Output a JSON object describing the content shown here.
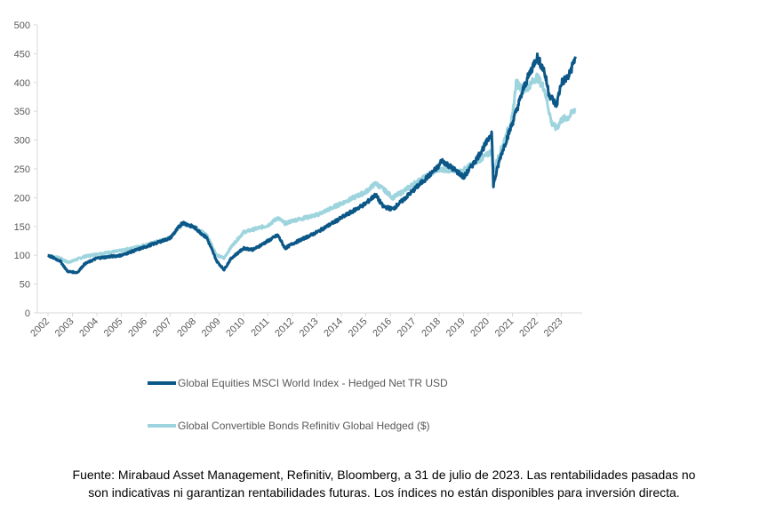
{
  "chart_data": {
    "type": "line",
    "title": "",
    "xlabel": "",
    "ylabel": "",
    "ylim": [
      0,
      500
    ],
    "yticks": [
      0,
      50,
      100,
      150,
      200,
      250,
      300,
      350,
      400,
      450,
      500
    ],
    "xlim": [
      2002,
      2023.6
    ],
    "xticks": [
      "2002",
      "2003",
      "2004",
      "2005",
      "2006",
      "2007",
      "2008",
      "2009",
      "2010",
      "2011",
      "2012",
      "2013",
      "2014",
      "2015",
      "2016",
      "2017",
      "2018",
      "2019",
      "2020",
      "2021",
      "2022",
      "2023"
    ],
    "grid": false,
    "legend_position": "bottom",
    "series": [
      {
        "name": "Global Equities MSCI World Index - Hedged Net TR USD",
        "color": "#0b5787",
        "points": [
          [
            2002,
            100
          ],
          [
            2002.5,
            90
          ],
          [
            2002.8,
            72
          ],
          [
            2003.2,
            70
          ],
          [
            2003.5,
            85
          ],
          [
            2004,
            95
          ],
          [
            2005,
            100
          ],
          [
            2006,
            115
          ],
          [
            2007,
            130
          ],
          [
            2007.5,
            157
          ],
          [
            2008,
            148
          ],
          [
            2008.5,
            130
          ],
          [
            2008.9,
            90
          ],
          [
            2009.2,
            75
          ],
          [
            2009.5,
            95
          ],
          [
            2010,
            112
          ],
          [
            2010.4,
            110
          ],
          [
            2011,
            125
          ],
          [
            2011.4,
            135
          ],
          [
            2011.7,
            112
          ],
          [
            2012,
            120
          ],
          [
            2013,
            140
          ],
          [
            2014,
            165
          ],
          [
            2015,
            190
          ],
          [
            2015.4,
            205
          ],
          [
            2015.7,
            185
          ],
          [
            2016.1,
            180
          ],
          [
            2016.5,
            195
          ],
          [
            2017,
            215
          ],
          [
            2018,
            255
          ],
          [
            2018.1,
            265
          ],
          [
            2018.9,
            240
          ],
          [
            2019,
            235
          ],
          [
            2019.5,
            265
          ],
          [
            2020,
            300
          ],
          [
            2020.15,
            315
          ],
          [
            2020.22,
            222
          ],
          [
            2020.5,
            270
          ],
          [
            2021,
            330
          ],
          [
            2021.5,
            395
          ],
          [
            2022,
            445
          ],
          [
            2022.3,
            420
          ],
          [
            2022.5,
            380
          ],
          [
            2022.8,
            360
          ],
          [
            2023,
            400
          ],
          [
            2023.3,
            410
          ],
          [
            2023.58,
            445
          ]
        ]
      },
      {
        "name": "Global Convertible Bonds Refinitiv Global Hedged ($)",
        "color": "#9dd4de",
        "points": [
          [
            2002,
            100
          ],
          [
            2002.5,
            95
          ],
          [
            2002.8,
            88
          ],
          [
            2003,
            90
          ],
          [
            2003.5,
            98
          ],
          [
            2004,
            102
          ],
          [
            2005,
            108
          ],
          [
            2006,
            118
          ],
          [
            2007,
            130
          ],
          [
            2007.5,
            155
          ],
          [
            2008,
            150
          ],
          [
            2008.5,
            135
          ],
          [
            2008.9,
            100
          ],
          [
            2009.2,
            95
          ],
          [
            2009.5,
            115
          ],
          [
            2010,
            140
          ],
          [
            2011,
            152
          ],
          [
            2011.4,
            165
          ],
          [
            2011.7,
            155
          ],
          [
            2012,
            160
          ],
          [
            2013,
            170
          ],
          [
            2014,
            190
          ],
          [
            2015,
            210
          ],
          [
            2015.4,
            225
          ],
          [
            2015.8,
            212
          ],
          [
            2016.1,
            200
          ],
          [
            2016.5,
            210
          ],
          [
            2017,
            225
          ],
          [
            2018,
            250
          ],
          [
            2018.9,
            245
          ],
          [
            2019,
            248
          ],
          [
            2019.5,
            262
          ],
          [
            2020,
            275
          ],
          [
            2020.15,
            282
          ],
          [
            2020.22,
            245
          ],
          [
            2020.5,
            280
          ],
          [
            2021,
            340
          ],
          [
            2021.15,
            400
          ],
          [
            2021.5,
            385
          ],
          [
            2022,
            410
          ],
          [
            2022.3,
            390
          ],
          [
            2022.6,
            330
          ],
          [
            2022.8,
            320
          ],
          [
            2023,
            335
          ],
          [
            2023.3,
            340
          ],
          [
            2023.58,
            355
          ]
        ]
      }
    ]
  },
  "footer": {
    "line1": "Fuente: Mirabaud Asset Management, Refinitiv, Bloomberg, a 31 de julio de 2023. Las rentabilidades pasadas no",
    "line2": "son indicativas ni garantizan rentabilidades futuras. Los índices no están disponibles para inversión directa."
  }
}
